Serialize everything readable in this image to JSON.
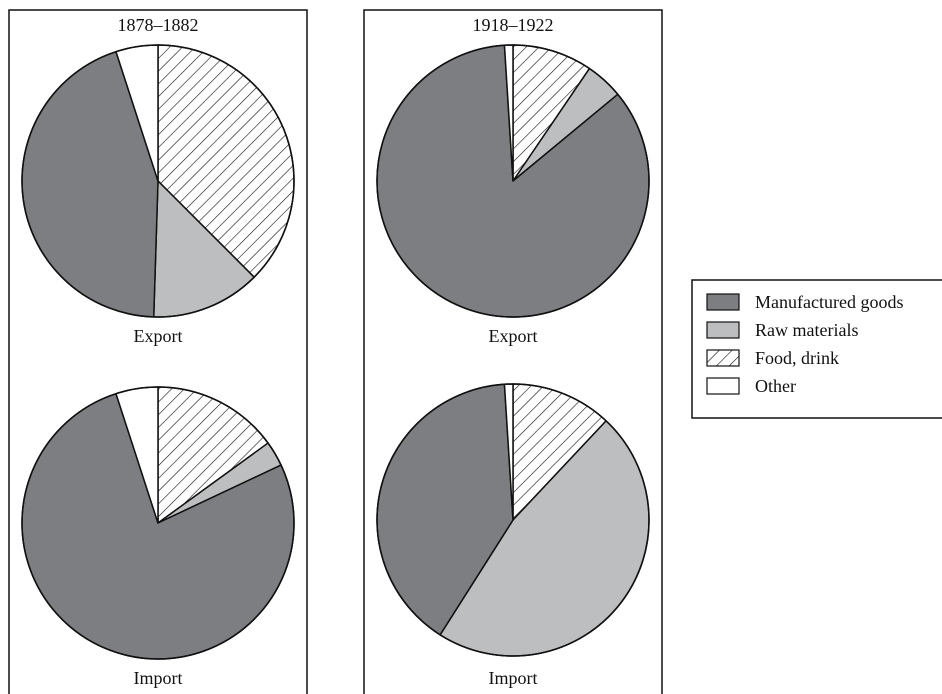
{
  "colors": {
    "manufactured_goods": "#7d7e82",
    "raw_materials": "#bdbebf",
    "food_drink": "#ffffff",
    "other": "#ffffff",
    "outline": "#111111"
  },
  "legend": {
    "items": [
      {
        "label": "Manufactured goods",
        "fill": "solid-dark"
      },
      {
        "label": "Raw materials",
        "fill": "solid-light"
      },
      {
        "label": "Food, drink",
        "fill": "hatch"
      },
      {
        "label": "Other",
        "fill": "empty"
      }
    ]
  },
  "chart_data": [
    {
      "type": "pie",
      "title": "1878–1882",
      "pies": [
        {
          "label": "Export",
          "slices": [
            {
              "name": "Food, drink",
              "value": 37.5
            },
            {
              "name": "Raw materials",
              "value": 13.0
            },
            {
              "name": "Manufactured goods",
              "value": 44.5
            },
            {
              "name": "Other",
              "value": 5.0
            }
          ]
        },
        {
          "label": "Import",
          "slices": [
            {
              "name": "Food, drink",
              "value": 15.0
            },
            {
              "name": "Raw materials",
              "value": 3.0
            },
            {
              "name": "Manufactured goods",
              "value": 77.0
            },
            {
              "name": "Other",
              "value": 5.0
            }
          ]
        }
      ]
    },
    {
      "type": "pie",
      "title": "1918–1922",
      "pies": [
        {
          "label": "Export",
          "slices": [
            {
              "name": "Food, drink",
              "value": 9.5
            },
            {
              "name": "Raw materials",
              "value": 4.5
            },
            {
              "name": "Manufactured goods",
              "value": 85.0
            },
            {
              "name": "Other",
              "value": 1.0
            }
          ]
        },
        {
          "label": "Import",
          "slices": [
            {
              "name": "Food, drink",
              "value": 12.0
            },
            {
              "name": "Raw materials",
              "value": 47.0
            },
            {
              "name": "Manufactured goods",
              "value": 40.0
            },
            {
              "name": "Other",
              "value": 1.0
            }
          ]
        }
      ]
    }
  ]
}
